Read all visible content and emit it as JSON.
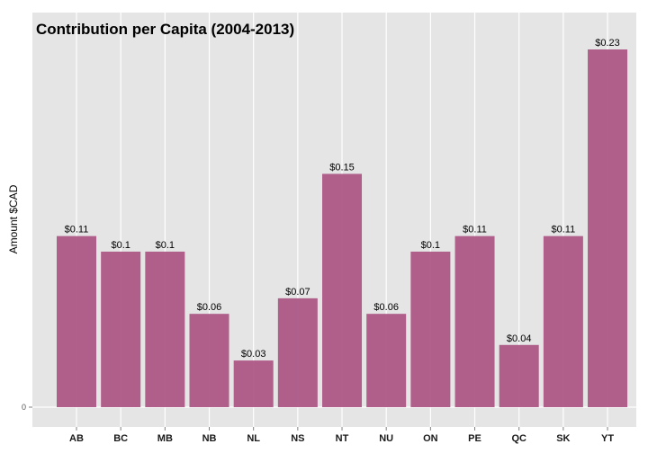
{
  "chart_data": {
    "type": "bar",
    "title": "Contribution per Capita (2004-2013)",
    "xlabel": "",
    "ylabel": "Amount $CAD",
    "categories": [
      "AB",
      "BC",
      "MB",
      "NB",
      "NL",
      "NS",
      "NT",
      "NU",
      "ON",
      "PE",
      "QC",
      "SK",
      "YT"
    ],
    "values": [
      0.11,
      0.1,
      0.1,
      0.06,
      0.03,
      0.07,
      0.15,
      0.06,
      0.1,
      0.11,
      0.04,
      0.11,
      0.23
    ],
    "data_labels": [
      "$0.11",
      "$0.1",
      "$0.1",
      "$0.06",
      "$0.03",
      "$0.07",
      "$0.15",
      "$0.06",
      "$0.1",
      "$0.11",
      "$0.04",
      "$0.11",
      "$0.23"
    ],
    "y_ticks": [
      0
    ],
    "y_tick_labels": [
      "0"
    ],
    "ylim": [
      0,
      0.2415
    ],
    "grid": true,
    "legend": "none",
    "colors": {
      "bar": "#A8507F",
      "panel": "#E5E5E5",
      "grid": "#FFFFFF"
    }
  }
}
